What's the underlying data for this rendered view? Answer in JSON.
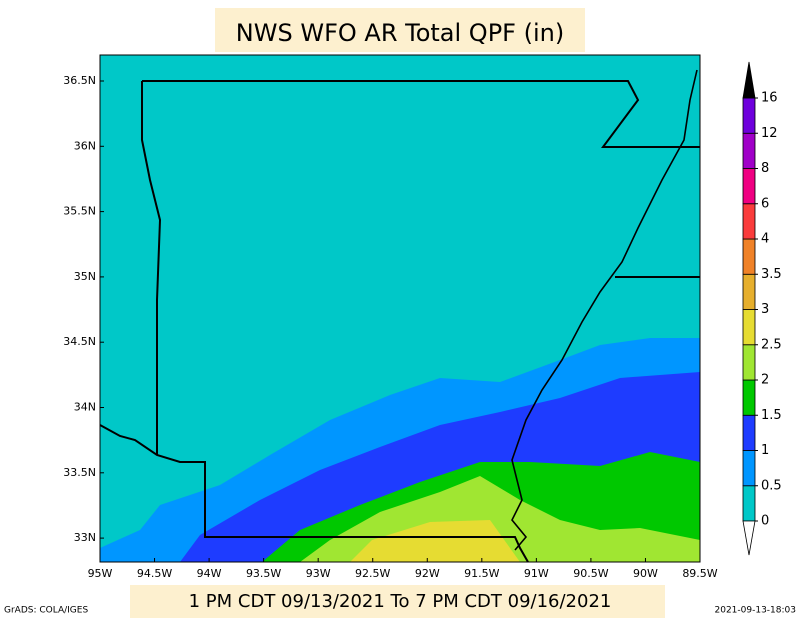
{
  "title": "NWS WFO AR Total QPF (in)",
  "period": "1 PM CDT 09/13/2021 To 7 PM CDT 09/16/2021",
  "credit": "GrADS: COLA/IGES",
  "timestamp": "2021-09-13-18:03",
  "latitude_labels": [
    "36.5N",
    "36N",
    "35.5N",
    "35N",
    "34.5N",
    "34N",
    "33.5N",
    "33N"
  ],
  "longitude_labels": [
    "95W",
    "94.5W",
    "94W",
    "93.5W",
    "93W",
    "92.5W",
    "92W",
    "91.5W",
    "91W",
    "90.5W",
    "90W",
    "89.5W"
  ],
  "colorbar": {
    "levels": [
      0,
      0.5,
      1,
      1.5,
      2,
      2.5,
      3,
      3.5,
      4,
      6,
      8,
      12,
      16
    ],
    "colors": [
      "#00c8c8",
      "#0096ff",
      "#1e3cff",
      "#00c800",
      "#a0e632",
      "#e6dc32",
      "#e6af2d",
      "#f08228",
      "#fa3c3c",
      "#f00082",
      "#a000c8",
      "#6e00dc"
    ],
    "under_color": "#ffffff",
    "over_color": "#000000"
  }
}
